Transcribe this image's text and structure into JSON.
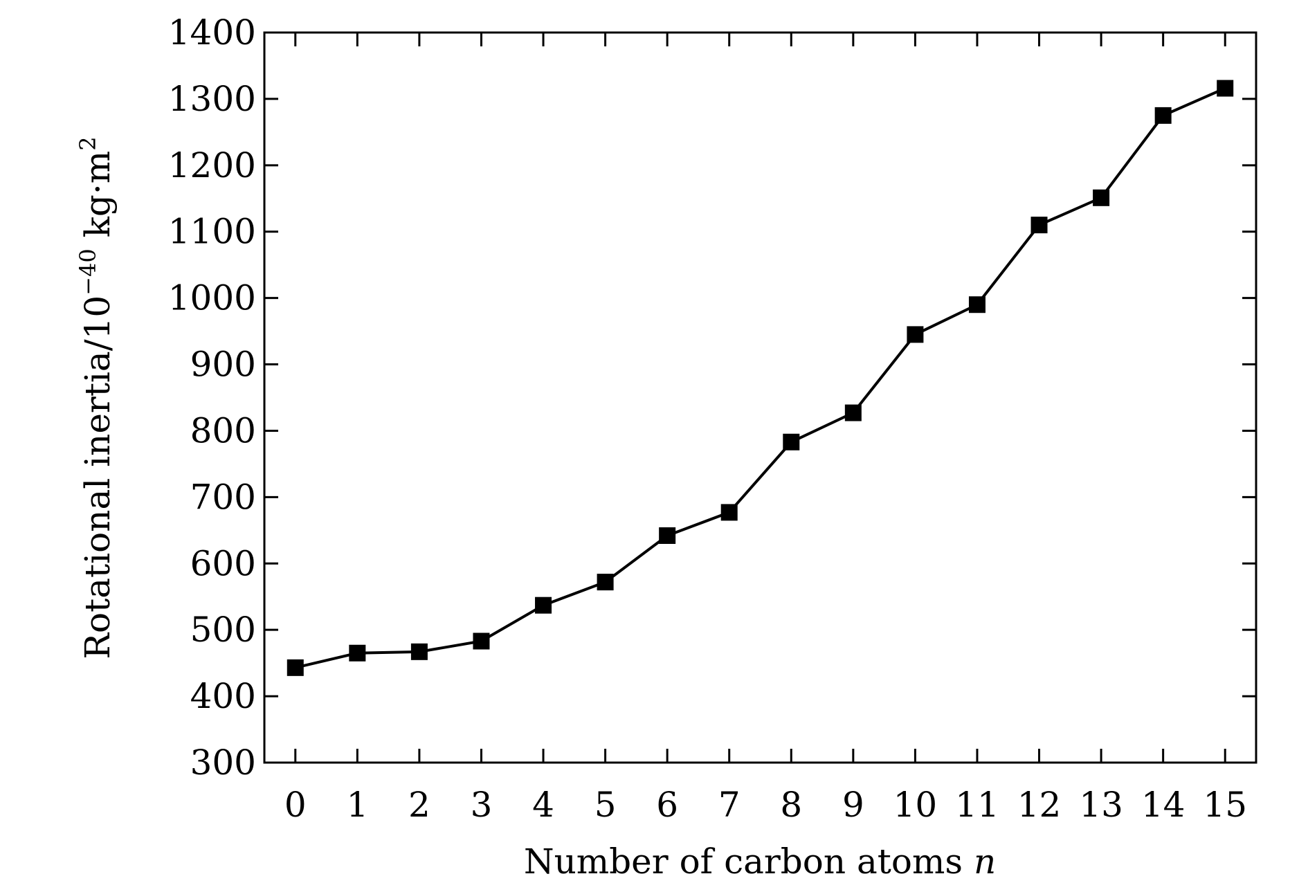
{
  "chart_data": {
    "type": "line",
    "title": "",
    "xlabel": "Number of carbon atoms",
    "xlabel_var": "n",
    "ylabel": "Rotational inertia/10",
    "ylabel_exp": "−40",
    "ylabel_unit": " kg·m",
    "ylabel_unit_exp": "2",
    "xlim": [
      -0.5,
      15.5
    ],
    "ylim": [
      300,
      1400
    ],
    "x_ticks": [
      0,
      1,
      2,
      3,
      4,
      5,
      6,
      7,
      8,
      9,
      10,
      11,
      12,
      13,
      14,
      15
    ],
    "y_ticks": [
      300,
      400,
      500,
      600,
      700,
      800,
      900,
      1000,
      1100,
      1200,
      1300,
      1400
    ],
    "grid": false,
    "marker": "square",
    "series_color": "#000000",
    "x": [
      0,
      1,
      2,
      3,
      4,
      5,
      6,
      7,
      8,
      9,
      10,
      11,
      12,
      13,
      14,
      15
    ],
    "y": [
      443,
      465,
      467,
      483,
      537,
      572,
      642,
      677,
      783,
      827,
      945,
      990,
      1110,
      1151,
      1275,
      1316
    ]
  }
}
